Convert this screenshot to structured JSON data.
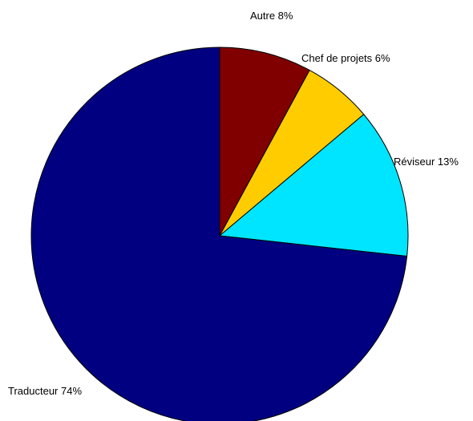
{
  "chart_data": {
    "type": "pie",
    "start_angle_deg": 0,
    "direction": "clockwise",
    "slices": [
      {
        "label": "Autre 8%",
        "value": 8,
        "color": "#800000"
      },
      {
        "label": "Chef de projets 6%",
        "value": 6,
        "color": "#FFCC00"
      },
      {
        "label": "Réviseur 13%",
        "value": 13,
        "color": "#00E5FF"
      },
      {
        "label": "Traducteur 74%",
        "value": 74,
        "color": "#000080"
      }
    ]
  }
}
